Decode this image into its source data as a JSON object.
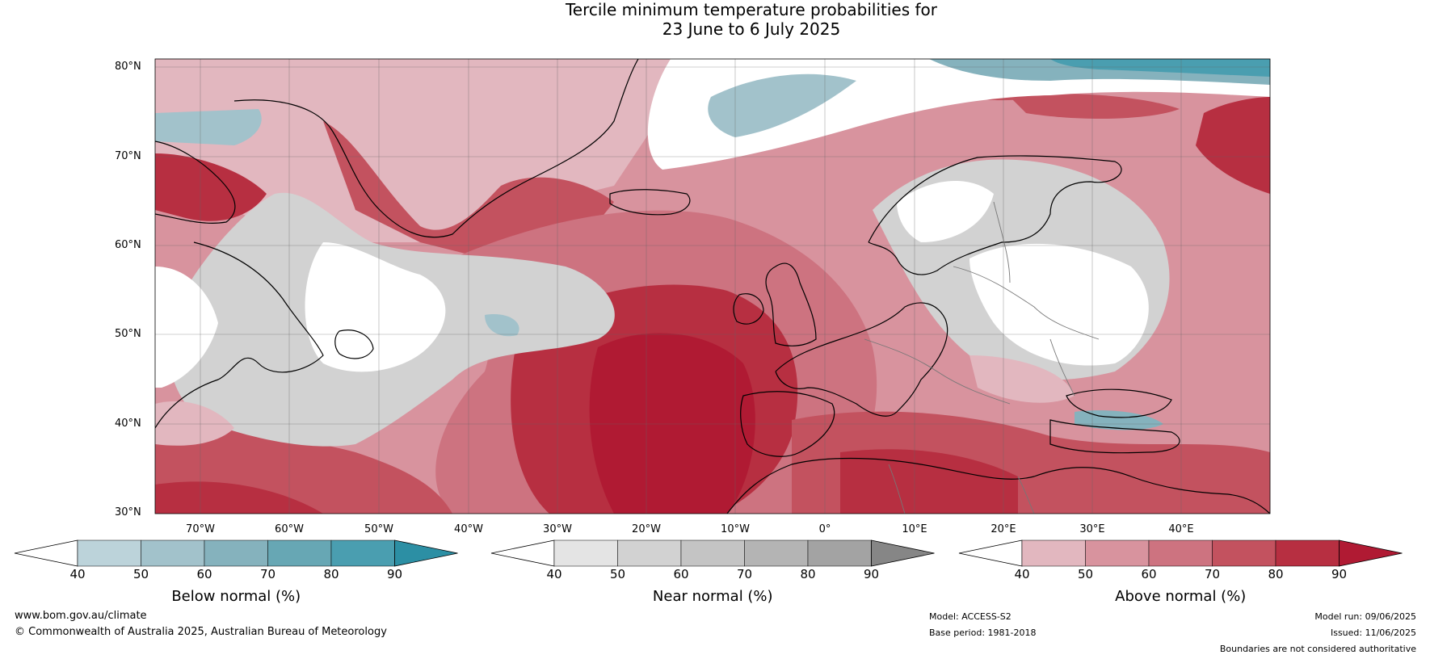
{
  "title_line1": "Tercile minimum temperature probabilities for",
  "title_line2": "23 June to 6 July 2025",
  "lat_labels": [
    "80°N",
    "70°N",
    "60°N",
    "50°N",
    "40°N",
    "30°N"
  ],
  "lon_labels": [
    "70°W",
    "60°W",
    "50°W",
    "40°W",
    "30°W",
    "20°W",
    "10°W",
    "0°",
    "10°E",
    "20°E",
    "30°E",
    "40°E"
  ],
  "colorbars": [
    {
      "label": "Below normal (%)",
      "ticks": [
        "40",
        "50",
        "60",
        "70",
        "80",
        "90"
      ],
      "colors": [
        "#ffffff",
        "#bcd3da",
        "#a2c2cb",
        "#85b2bd",
        "#67a7b4",
        "#4a9eb0",
        "#2c8fa4"
      ]
    },
    {
      "label": "Near normal (%)",
      "ticks": [
        "40",
        "50",
        "60",
        "70",
        "80",
        "90"
      ],
      "colors": [
        "#ffffff",
        "#e4e4e4",
        "#d2d2d2",
        "#c4c4c4",
        "#b4b4b4",
        "#a3a3a3",
        "#868686"
      ]
    },
    {
      "label": "Above normal (%)",
      "ticks": [
        "40",
        "50",
        "60",
        "70",
        "80",
        "90"
      ],
      "colors": [
        "#ffffff",
        "#e2b7bf",
        "#d8939e",
        "#cd7380",
        "#c3525f",
        "#b72f41",
        "#b01a33"
      ]
    }
  ],
  "footer": {
    "url": "www.bom.gov.au/climate",
    "copyright": "© Commonwealth of Australia 2025, Australian Bureau of Meteorology",
    "model": "Model: ACCESS-S2",
    "base_period": "Base period: 1981-2018",
    "model_run": "Model run: 09/06/2025",
    "issued": "Issued: 11/06/2025",
    "disclaimer": "Boundaries are not considered authoritative"
  }
}
